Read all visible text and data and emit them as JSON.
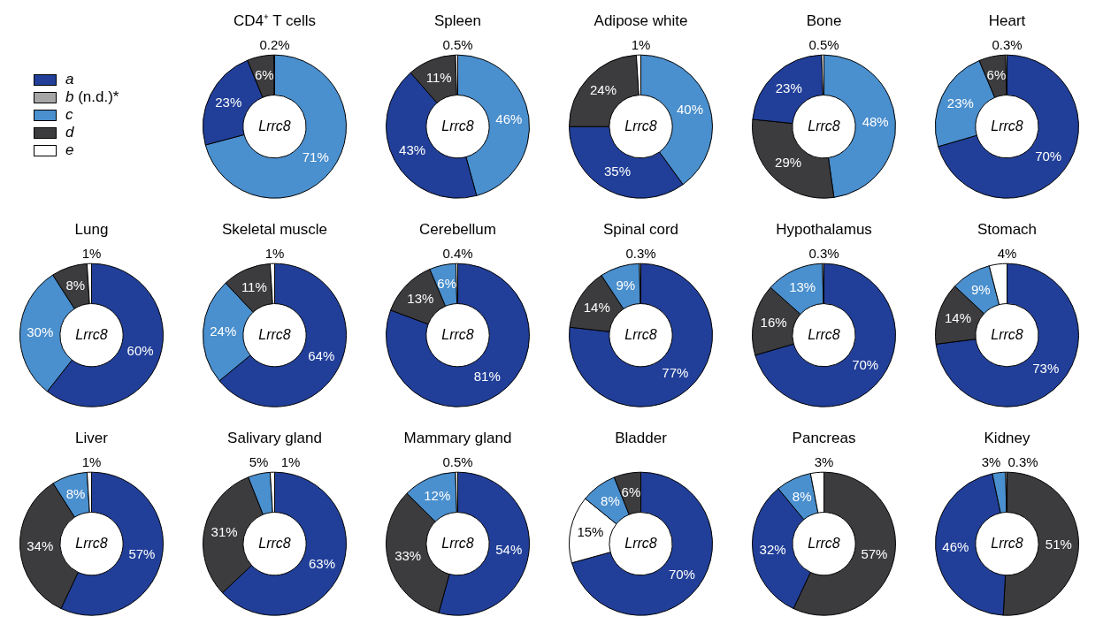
{
  "chart_data": [
    {
      "type": "other",
      "categories": [
        "a",
        "b (n.d.)*",
        "c",
        "d",
        "e"
      ],
      "colors": [
        "#213f99",
        "#a6a6a6",
        "#4a8fce",
        "#3c3c3e",
        "#ffffff"
      ]
    },
    {
      "type": "donut",
      "title": "CD4⁺ T cells",
      "annotations": [
        "Lrrc8"
      ],
      "categories": [
        null,
        null,
        null,
        null
      ],
      "values": [
        71,
        23,
        6,
        0.2
      ],
      "value_labels": [
        "71%",
        "23%",
        "6%",
        "0.2%"
      ],
      "colors": [
        "#4a8fce",
        "#213f99",
        "#3c3c3e",
        "#ffffff"
      ]
    },
    {
      "type": "donut",
      "title": "Spleen",
      "annotations": [
        "Lrrc8"
      ],
      "categories": [
        null,
        null,
        null,
        null
      ],
      "values": [
        46,
        43,
        11,
        0.5
      ],
      "value_labels": [
        "46%",
        "43%",
        "11%",
        "0.5%"
      ],
      "colors": [
        "#4a8fce",
        "#213f99",
        "#3c3c3e",
        "#ffffff"
      ]
    },
    {
      "type": "donut",
      "title": "Adipose white",
      "annotations": [
        "Lrrc8"
      ],
      "categories": [
        null,
        null,
        null,
        null
      ],
      "values": [
        40,
        35,
        24,
        1
      ],
      "value_labels": [
        "40%",
        "35%",
        "24%",
        "1%"
      ],
      "colors": [
        "#4a8fce",
        "#213f99",
        "#3c3c3e",
        "#ffffff"
      ]
    },
    {
      "type": "donut",
      "title": "Bone",
      "annotations": [
        "Lrrc8"
      ],
      "categories": [
        null,
        null,
        null,
        null
      ],
      "values": [
        48,
        29,
        23,
        0.5
      ],
      "value_labels": [
        "48%",
        "29%",
        "23%",
        "0.5%"
      ],
      "colors": [
        "#4a8fce",
        "#3c3c3e",
        "#213f99",
        "#ffffff"
      ]
    },
    {
      "type": "donut",
      "title": "Heart",
      "annotations": [
        "Lrrc8"
      ],
      "categories": [
        null,
        null,
        null,
        null
      ],
      "values": [
        70,
        23,
        6,
        0.3
      ],
      "value_labels": [
        "70%",
        "23%",
        "6%",
        "0.3%"
      ],
      "colors": [
        "#213f99",
        "#4a8fce",
        "#3c3c3e",
        "#ffffff"
      ]
    },
    {
      "type": "donut",
      "title": "Lung",
      "annotations": [
        "Lrrc8"
      ],
      "categories": [
        null,
        null,
        null,
        null
      ],
      "values": [
        60,
        30,
        8,
        1
      ],
      "value_labels": [
        "60%",
        "30%",
        "8%",
        "1%"
      ],
      "colors": [
        "#213f99",
        "#4a8fce",
        "#3c3c3e",
        "#ffffff"
      ]
    },
    {
      "type": "donut",
      "title": "Skeletal muscle",
      "annotations": [
        "Lrrc8"
      ],
      "categories": [
        null,
        null,
        null,
        null
      ],
      "values": [
        64,
        24,
        11,
        1
      ],
      "value_labels": [
        "64%",
        "24%",
        "11%",
        "1%"
      ],
      "colors": [
        "#213f99",
        "#4a8fce",
        "#3c3c3e",
        "#ffffff"
      ]
    },
    {
      "type": "donut",
      "title": "Cerebellum",
      "annotations": [
        "Lrrc8"
      ],
      "categories": [
        null,
        null,
        null,
        null
      ],
      "values": [
        81,
        13,
        6,
        0.4
      ],
      "value_labels": [
        "81%",
        "13%",
        "6%",
        "0.4%"
      ],
      "colors": [
        "#213f99",
        "#3c3c3e",
        "#4a8fce",
        "#ffffff"
      ]
    },
    {
      "type": "donut",
      "title": "Spinal cord",
      "annotations": [
        "Lrrc8"
      ],
      "categories": [
        null,
        null,
        null,
        null
      ],
      "values": [
        77,
        14,
        9,
        0.3
      ],
      "value_labels": [
        "77%",
        "14%",
        "9%",
        "0.3%"
      ],
      "colors": [
        "#213f99",
        "#3c3c3e",
        "#4a8fce",
        "#ffffff"
      ]
    },
    {
      "type": "donut",
      "title": "Hypothalamus",
      "annotations": [
        "Lrrc8"
      ],
      "categories": [
        null,
        null,
        null,
        null
      ],
      "values": [
        70,
        16,
        13,
        0.3
      ],
      "value_labels": [
        "70%",
        "16%",
        "13%",
        "0.3%"
      ],
      "colors": [
        "#213f99",
        "#3c3c3e",
        "#4a8fce",
        "#ffffff"
      ]
    },
    {
      "type": "donut",
      "title": "Stomach",
      "annotations": [
        "Lrrc8"
      ],
      "categories": [
        null,
        null,
        null,
        null
      ],
      "values": [
        73,
        14,
        9,
        4
      ],
      "value_labels": [
        "73%",
        "14%",
        "9%",
        "4%"
      ],
      "colors": [
        "#213f99",
        "#3c3c3e",
        "#4a8fce",
        "#ffffff"
      ]
    },
    {
      "type": "donut",
      "title": "Liver",
      "annotations": [
        "Lrrc8"
      ],
      "categories": [
        null,
        null,
        null,
        null
      ],
      "values": [
        57,
        34,
        8,
        1
      ],
      "value_labels": [
        "57%",
        "34%",
        "8%",
        "1%"
      ],
      "colors": [
        "#213f99",
        "#3c3c3e",
        "#4a8fce",
        "#ffffff"
      ]
    },
    {
      "type": "donut",
      "title": "Salivary gland",
      "annotations": [
        "Lrrc8"
      ],
      "categories": [
        null,
        null,
        null,
        null
      ],
      "values": [
        63,
        31,
        5,
        1
      ],
      "value_labels": [
        "63%",
        "31%",
        "5%",
        "1%"
      ],
      "colors": [
        "#213f99",
        "#3c3c3e",
        "#4a8fce",
        "#ffffff"
      ]
    },
    {
      "type": "donut",
      "title": "Mammary gland",
      "annotations": [
        "Lrrc8"
      ],
      "categories": [
        null,
        null,
        null,
        null
      ],
      "values": [
        54,
        33,
        12,
        0.5
      ],
      "value_labels": [
        "54%",
        "33%",
        "12%",
        "0.5%"
      ],
      "colors": [
        "#213f99",
        "#3c3c3e",
        "#4a8fce",
        "#ffffff"
      ]
    },
    {
      "type": "donut",
      "title": "Bladder",
      "annotations": [
        "Lrrc8"
      ],
      "categories": [
        null,
        null,
        null,
        null
      ],
      "values": [
        70,
        15,
        8,
        6
      ],
      "value_labels": [
        "70%",
        "15%",
        "8%",
        "6%"
      ],
      "colors": [
        "#213f99",
        "#ffffff",
        "#4a8fce",
        "#3c3c3e"
      ]
    },
    {
      "type": "donut",
      "title": "Pancreas",
      "annotations": [
        "Lrrc8"
      ],
      "categories": [
        null,
        null,
        null,
        null
      ],
      "values": [
        57,
        32,
        8,
        3
      ],
      "value_labels": [
        "57%",
        "32%",
        "8%",
        "3%"
      ],
      "colors": [
        "#3c3c3e",
        "#213f99",
        "#4a8fce",
        "#ffffff"
      ]
    },
    {
      "type": "donut",
      "title": "Kidney",
      "annotations": [
        "Lrrc8"
      ],
      "categories": [
        null,
        null,
        null,
        null
      ],
      "values": [
        51,
        46,
        3,
        0.3
      ],
      "value_labels": [
        "51%",
        "46%",
        "3%",
        "0.3%"
      ],
      "colors": [
        "#3c3c3e",
        "#213f99",
        "#4a8fce",
        "#ffffff"
      ]
    }
  ]
}
